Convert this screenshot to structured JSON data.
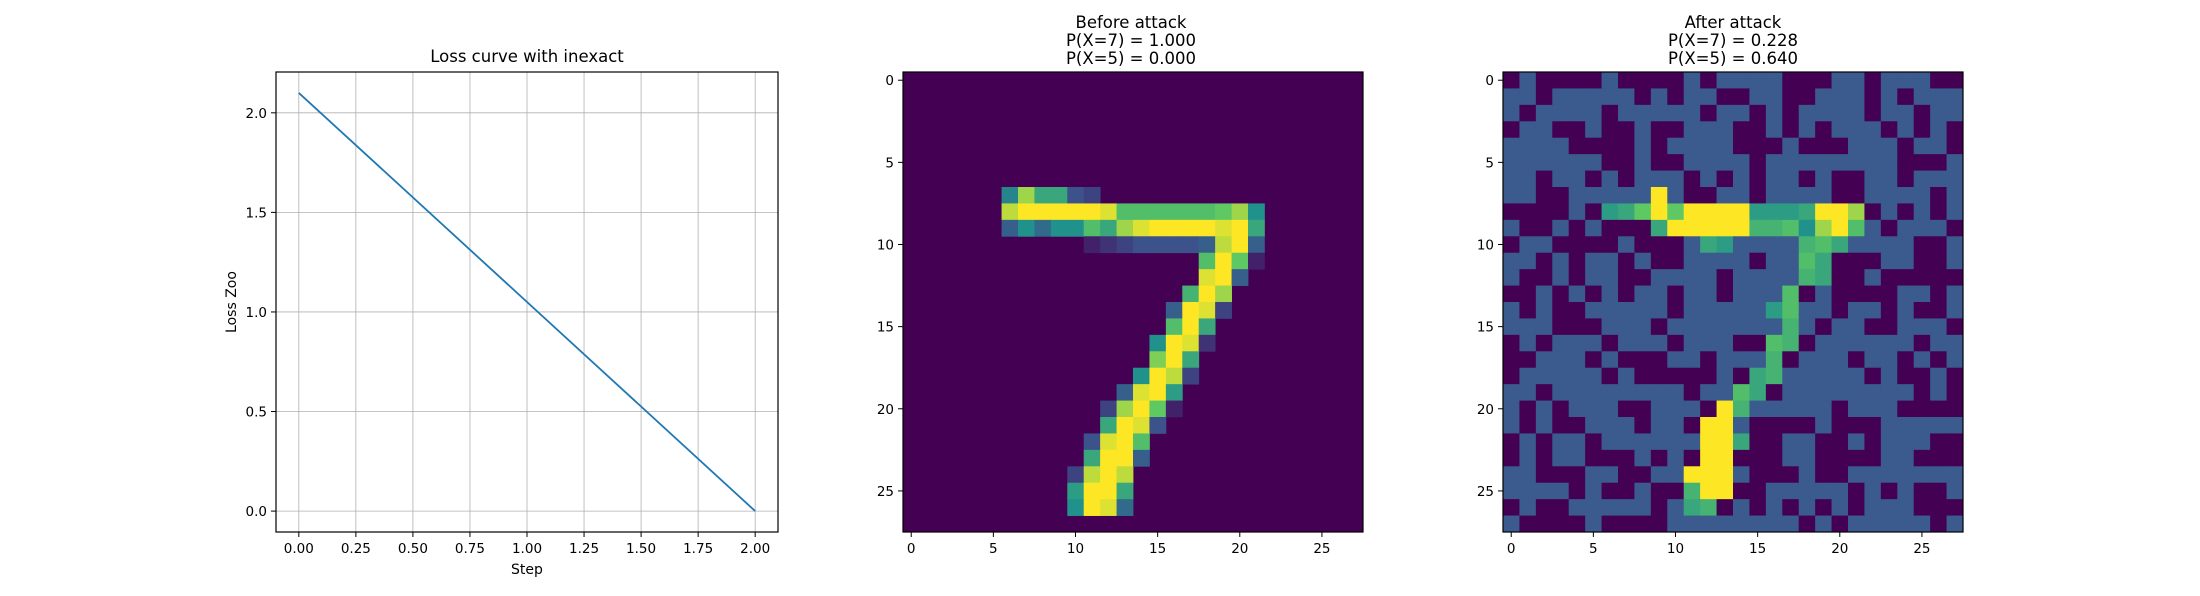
{
  "chart_data": [
    {
      "type": "line",
      "title": "Loss curve with inexact",
      "xlabel": "Step",
      "ylabel": "Loss Zoo",
      "x": [
        0.0,
        2.0
      ],
      "series": [
        {
          "values": [
            2.1,
            0.0
          ]
        }
      ],
      "xlim": [
        -0.1,
        2.1
      ],
      "ylim": [
        -0.105,
        2.205
      ],
      "xticks": [
        0.0,
        0.25,
        0.5,
        0.75,
        1.0,
        1.25,
        1.5,
        1.75,
        2.0
      ],
      "xtick_labels": [
        "0.00",
        "0.25",
        "0.50",
        "0.75",
        "1.00",
        "1.25",
        "1.50",
        "1.75",
        "2.00"
      ],
      "yticks": [
        0.0,
        0.5,
        1.0,
        1.5,
        2.0
      ],
      "ytick_labels": [
        "0.0",
        "0.5",
        "1.0",
        "1.5",
        "2.0"
      ],
      "grid": true,
      "line_color": "#1f77b4"
    },
    {
      "type": "heatmap",
      "title_lines": [
        "Before attack",
        "P(X=7) = 1.000",
        "P(X=5) = 0.000"
      ],
      "size": 28,
      "ticks": [
        0,
        5,
        10,
        15,
        20,
        25
      ],
      "tick_labels": [
        "0",
        "5",
        "10",
        "15",
        "20",
        "25"
      ],
      "colormap": "viridis",
      "background_color": "#440154",
      "cells": [
        [
          7,
          6,
          0.45
        ],
        [
          7,
          7,
          0.85
        ],
        [
          7,
          8,
          0.6
        ],
        [
          7,
          9,
          0.6
        ],
        [
          7,
          10,
          0.25
        ],
        [
          7,
          11,
          0.2
        ],
        [
          8,
          6,
          0.9
        ],
        [
          8,
          7,
          1.0
        ],
        [
          8,
          8,
          1.0
        ],
        [
          8,
          9,
          1.0
        ],
        [
          8,
          10,
          1.0
        ],
        [
          8,
          11,
          1.0
        ],
        [
          8,
          12,
          0.95
        ],
        [
          8,
          13,
          0.7
        ],
        [
          8,
          14,
          0.7
        ],
        [
          8,
          15,
          0.7
        ],
        [
          8,
          16,
          0.7
        ],
        [
          8,
          17,
          0.7
        ],
        [
          8,
          18,
          0.7
        ],
        [
          8,
          19,
          0.75
        ],
        [
          8,
          20,
          0.85
        ],
        [
          8,
          21,
          0.5
        ],
        [
          9,
          6,
          0.3
        ],
        [
          9,
          7,
          0.5
        ],
        [
          9,
          8,
          0.35
        ],
        [
          9,
          9,
          0.5
        ],
        [
          9,
          10,
          0.5
        ],
        [
          9,
          11,
          0.7
        ],
        [
          9,
          12,
          0.6
        ],
        [
          9,
          13,
          0.85
        ],
        [
          9,
          14,
          0.95
        ],
        [
          9,
          15,
          1.0
        ],
        [
          9,
          16,
          1.0
        ],
        [
          9,
          17,
          1.0
        ],
        [
          9,
          18,
          1.0
        ],
        [
          9,
          19,
          0.95
        ],
        [
          9,
          20,
          1.0
        ],
        [
          9,
          21,
          0.6
        ],
        [
          10,
          11,
          0.1
        ],
        [
          10,
          12,
          0.15
        ],
        [
          10,
          13,
          0.2
        ],
        [
          10,
          14,
          0.25
        ],
        [
          10,
          15,
          0.25
        ],
        [
          10,
          16,
          0.25
        ],
        [
          10,
          17,
          0.25
        ],
        [
          10,
          18,
          0.3
        ],
        [
          10,
          19,
          0.9
        ],
        [
          10,
          20,
          1.0
        ],
        [
          10,
          21,
          0.3
        ],
        [
          11,
          18,
          0.7
        ],
        [
          11,
          19,
          1.0
        ],
        [
          11,
          20,
          0.75
        ],
        [
          11,
          21,
          0.1
        ],
        [
          12,
          18,
          0.95
        ],
        [
          12,
          19,
          1.0
        ],
        [
          12,
          20,
          0.3
        ],
        [
          13,
          17,
          0.65
        ],
        [
          13,
          18,
          1.0
        ],
        [
          13,
          19,
          0.85
        ],
        [
          14,
          16,
          0.3
        ],
        [
          14,
          17,
          1.0
        ],
        [
          14,
          18,
          0.95
        ],
        [
          14,
          19,
          0.2
        ],
        [
          15,
          16,
          0.7
        ],
        [
          15,
          17,
          1.0
        ],
        [
          15,
          18,
          0.6
        ],
        [
          16,
          15,
          0.5
        ],
        [
          16,
          16,
          1.0
        ],
        [
          16,
          17,
          0.95
        ],
        [
          16,
          18,
          0.15
        ],
        [
          17,
          15,
          0.8
        ],
        [
          17,
          16,
          1.0
        ],
        [
          17,
          17,
          0.6
        ],
        [
          18,
          14,
          0.5
        ],
        [
          18,
          15,
          1.0
        ],
        [
          18,
          16,
          0.9
        ],
        [
          18,
          17,
          0.2
        ],
        [
          19,
          13,
          0.3
        ],
        [
          19,
          14,
          0.95
        ],
        [
          19,
          15,
          1.0
        ],
        [
          19,
          16,
          0.55
        ],
        [
          20,
          12,
          0.2
        ],
        [
          20,
          13,
          0.85
        ],
        [
          20,
          14,
          1.0
        ],
        [
          20,
          15,
          0.75
        ],
        [
          20,
          16,
          0.1
        ],
        [
          21,
          12,
          0.6
        ],
        [
          21,
          13,
          1.0
        ],
        [
          21,
          14,
          0.95
        ],
        [
          21,
          15,
          0.25
        ],
        [
          22,
          11,
          0.25
        ],
        [
          22,
          12,
          0.95
        ],
        [
          22,
          13,
          1.0
        ],
        [
          22,
          14,
          0.7
        ],
        [
          23,
          11,
          0.6
        ],
        [
          23,
          12,
          1.0
        ],
        [
          23,
          13,
          1.0
        ],
        [
          23,
          14,
          0.3
        ],
        [
          24,
          10,
          0.2
        ],
        [
          24,
          11,
          0.9
        ],
        [
          24,
          12,
          1.0
        ],
        [
          24,
          13,
          0.9
        ],
        [
          25,
          10,
          0.55
        ],
        [
          25,
          11,
          1.0
        ],
        [
          25,
          12,
          1.0
        ],
        [
          25,
          13,
          0.6
        ],
        [
          26,
          10,
          0.5
        ],
        [
          26,
          11,
          1.0
        ],
        [
          26,
          12,
          0.95
        ],
        [
          26,
          13,
          0.35
        ]
      ]
    },
    {
      "type": "heatmap",
      "title_lines": [
        "After attack",
        "P(X=7) = 0.228",
        "P(X=5) = 0.640"
      ],
      "size": 28,
      "ticks": [
        0,
        5,
        10,
        15,
        20,
        25
      ],
      "tick_labels": [
        "0",
        "5",
        "10",
        "15",
        "20",
        "25"
      ],
      "colormap": "viridis",
      "noise_colors": [
        "#440154",
        "#3b5a8d"
      ],
      "stroke_cells": [
        [
          8,
          6,
          0.55
        ],
        [
          8,
          7,
          0.6
        ],
        [
          8,
          8,
          0.75
        ],
        [
          8,
          9,
          1.0
        ],
        [
          8,
          10,
          0.75
        ],
        [
          8,
          11,
          1.0
        ],
        [
          8,
          12,
          1.0
        ],
        [
          8,
          13,
          1.0
        ],
        [
          8,
          14,
          1.0
        ],
        [
          8,
          15,
          0.55
        ],
        [
          8,
          16,
          0.55
        ],
        [
          8,
          17,
          0.55
        ],
        [
          8,
          18,
          0.6
        ],
        [
          8,
          19,
          1.0
        ],
        [
          8,
          20,
          1.0
        ],
        [
          8,
          21,
          0.85
        ],
        [
          9,
          9,
          0.6
        ],
        [
          9,
          10,
          1.0
        ],
        [
          9,
          11,
          1.0
        ],
        [
          9,
          12,
          1.0
        ],
        [
          9,
          13,
          1.0
        ],
        [
          9,
          14,
          1.0
        ],
        [
          9,
          15,
          0.65
        ],
        [
          9,
          16,
          0.65
        ],
        [
          9,
          17,
          0.7
        ],
        [
          9,
          18,
          0.5
        ],
        [
          9,
          19,
          0.85
        ],
        [
          9,
          20,
          1.0
        ],
        [
          9,
          21,
          0.7
        ],
        [
          7,
          9,
          1.0
        ],
        [
          10,
          12,
          0.6
        ],
        [
          10,
          13,
          0.55
        ],
        [
          10,
          18,
          0.65
        ],
        [
          10,
          19,
          0.7
        ],
        [
          10,
          20,
          0.6
        ],
        [
          11,
          18,
          0.7
        ],
        [
          11,
          19,
          0.6
        ],
        [
          12,
          18,
          0.65
        ],
        [
          12,
          19,
          0.6
        ],
        [
          13,
          17,
          0.7
        ],
        [
          14,
          16,
          0.55
        ],
        [
          14,
          17,
          0.7
        ],
        [
          15,
          17,
          0.65
        ],
        [
          16,
          16,
          0.7
        ],
        [
          16,
          17,
          0.65
        ],
        [
          17,
          16,
          0.65
        ],
        [
          18,
          15,
          0.6
        ],
        [
          18,
          16,
          0.65
        ],
        [
          19,
          14,
          0.7
        ],
        [
          19,
          15,
          0.6
        ],
        [
          20,
          13,
          1.0
        ],
        [
          20,
          14,
          0.65
        ],
        [
          21,
          12,
          1.0
        ],
        [
          21,
          13,
          1.0
        ],
        [
          22,
          12,
          1.0
        ],
        [
          22,
          13,
          1.0
        ],
        [
          22,
          14,
          0.6
        ],
        [
          23,
          12,
          1.0
        ],
        [
          23,
          13,
          1.0
        ],
        [
          24,
          11,
          1.0
        ],
        [
          24,
          12,
          1.0
        ],
        [
          24,
          13,
          1.0
        ],
        [
          25,
          11,
          0.65
        ],
        [
          25,
          12,
          1.0
        ],
        [
          25,
          13,
          1.0
        ],
        [
          26,
          11,
          0.6
        ],
        [
          26,
          12,
          0.65
        ]
      ]
    }
  ]
}
